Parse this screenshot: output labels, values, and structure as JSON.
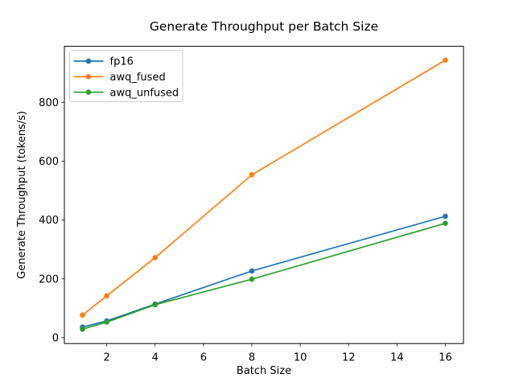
{
  "chart_data": {
    "type": "line",
    "title": "Generate Throughput per Batch Size",
    "xlabel": "Batch Size",
    "ylabel": "Generate Throughput (tokens/s)",
    "x": [
      1,
      2,
      4,
      8,
      16
    ],
    "series": [
      {
        "name": "fp16",
        "color": "#1f77b4",
        "values": [
          36,
          57,
          114,
          227,
          413
        ]
      },
      {
        "name": "awq_fused",
        "color": "#ff7f0e",
        "values": [
          77,
          142,
          272,
          554,
          944
        ]
      },
      {
        "name": "awq_unfused",
        "color": "#2ca02c",
        "values": [
          29,
          53,
          112,
          199,
          389
        ]
      }
    ],
    "xlim": [
      0.25,
      16.75
    ],
    "ylim": [
      -20,
      991
    ],
    "xticks": [
      2,
      4,
      6,
      8,
      10,
      12,
      14,
      16
    ],
    "yticks": [
      0,
      200,
      400,
      600,
      800
    ],
    "grid": false,
    "legend_position": "upper left",
    "marker": "circle",
    "line_style": "solid",
    "background_color": "#ffffff",
    "axes_edge_color": "#000000",
    "legend_border_color": "#cccccc"
  }
}
